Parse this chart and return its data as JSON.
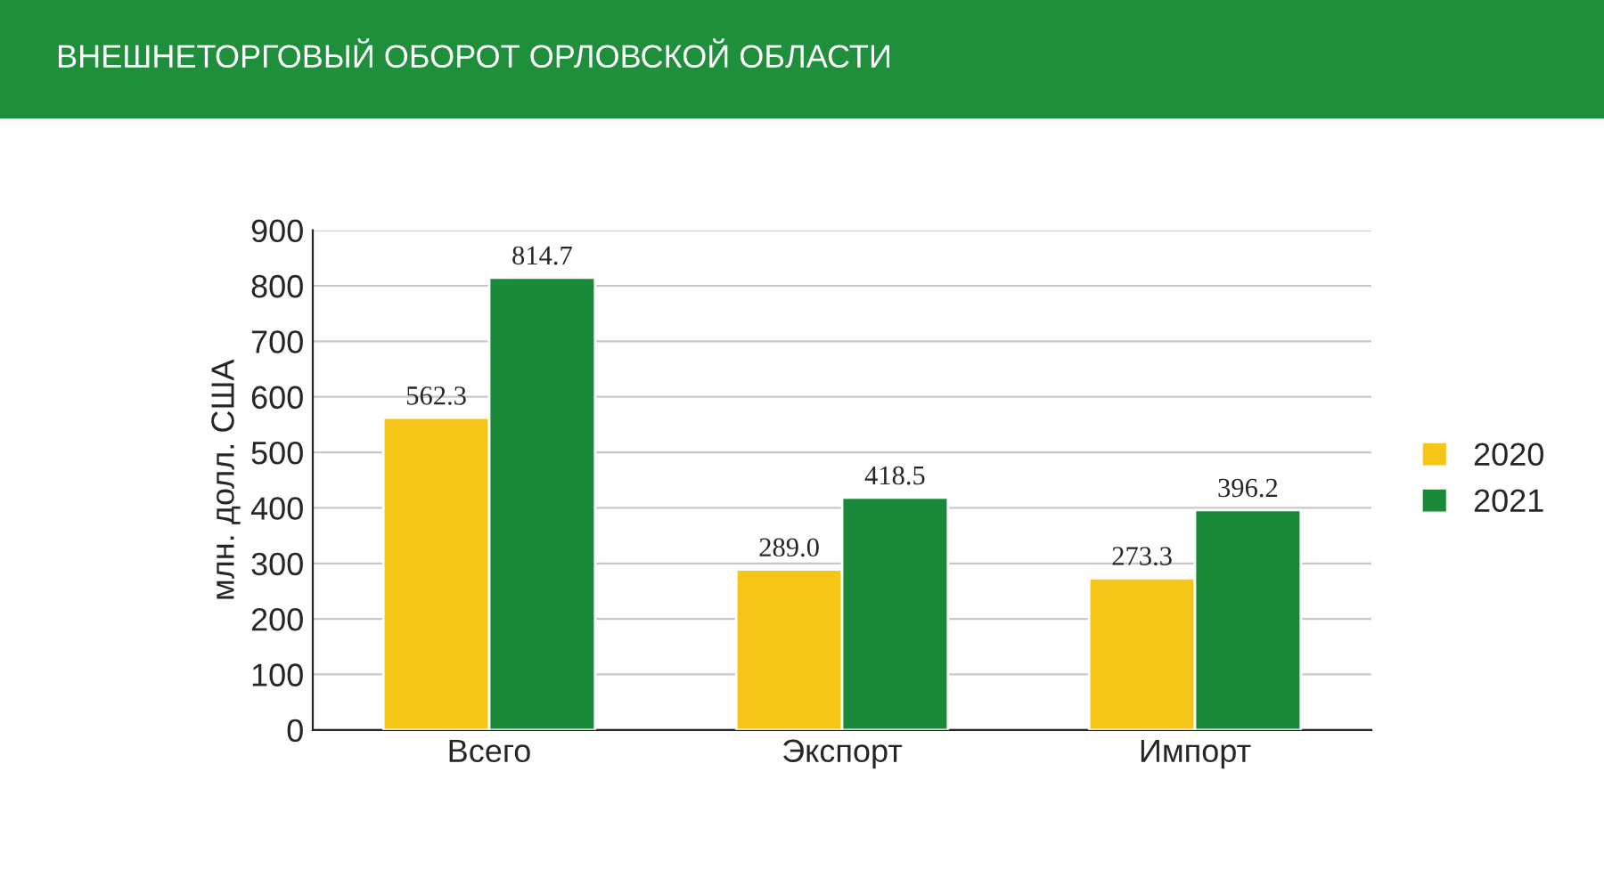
{
  "chart_data": {
    "type": "bar",
    "title": "ВНЕШНЕТОРГОВЫЙ ОБОРОТ ОРЛОВСКОЙ ОБЛАСТИ",
    "ylabel": "млн. долл. США",
    "categories": [
      "Всего",
      "Экспорт",
      "Импорт"
    ],
    "series": [
      {
        "name": "2020",
        "color": "#f5c518",
        "values": [
          562.3,
          289.0,
          273.3
        ],
        "value_labels": [
          "562.3",
          "289.0",
          "273.3"
        ]
      },
      {
        "name": "2021",
        "color": "#1a8a3a",
        "values": [
          814.7,
          418.5,
          396.2
        ],
        "value_labels": [
          "814.7",
          "418.5",
          "396.2"
        ]
      }
    ],
    "ylim": [
      0,
      900
    ],
    "yticks": [
      0,
      100,
      200,
      300,
      400,
      500,
      600,
      700,
      800,
      900
    ],
    "grid": "y",
    "legend": "right"
  }
}
